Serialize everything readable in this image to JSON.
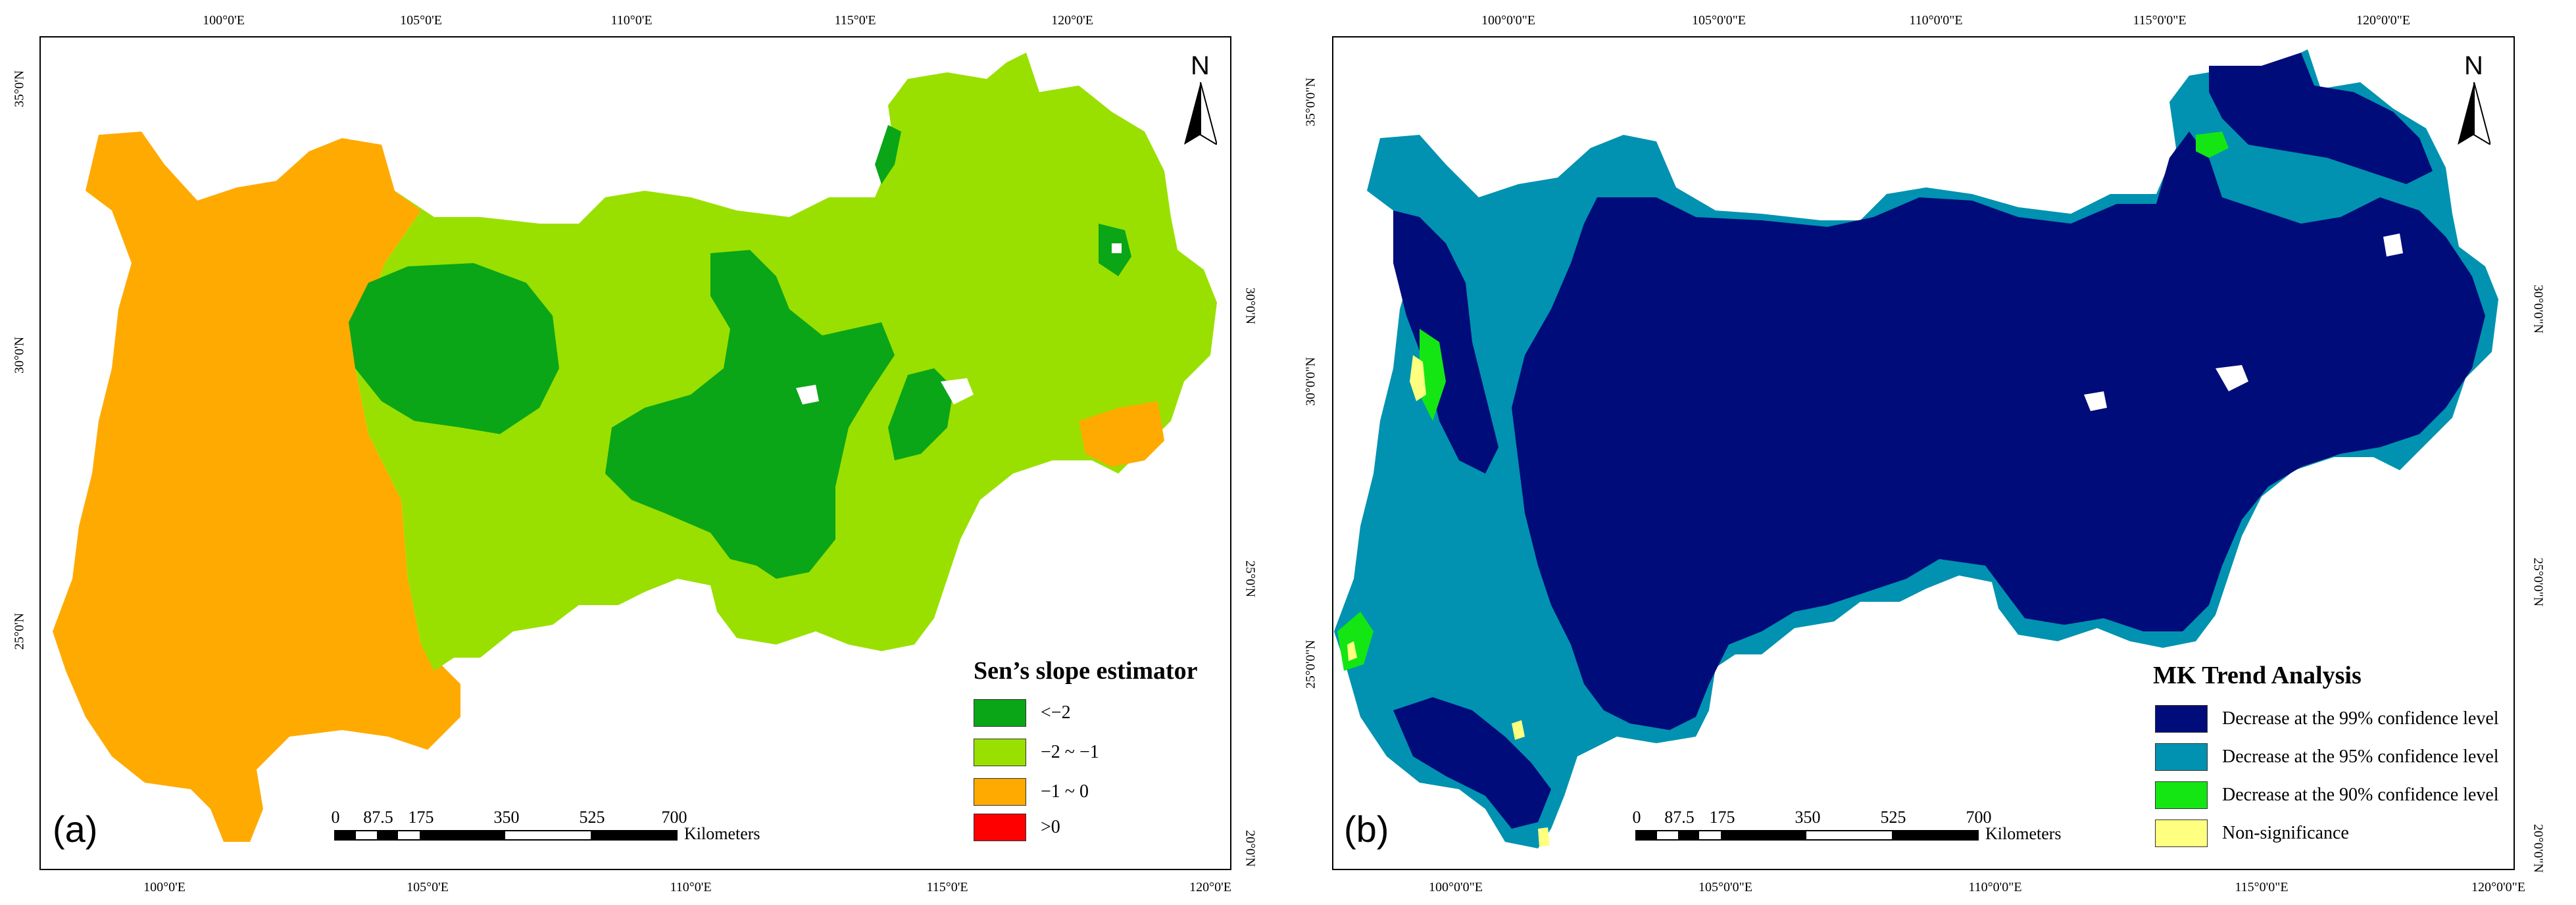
{
  "panels": {
    "a": {
      "label": "(a)",
      "lon_ticks": [
        "100°0'E",
        "105°0'E",
        "110°0'E",
        "115°0'E",
        "120°0'E"
      ],
      "lat_ticks": [
        "35°0'N",
        "30°0'N",
        "25°0'N",
        "20°0'N"
      ],
      "legend": {
        "title": "Sen’s slope estimator",
        "items": [
          {
            "label": "<−2",
            "color": "#0aa617"
          },
          {
            "label": "−2  ~ −1",
            "color": "#99e000"
          },
          {
            "label": "−1 ~ 0",
            "color": "#ffaa00"
          },
          {
            "label": ">0",
            "color": "#ff0000"
          }
        ]
      },
      "north": "N",
      "scale": {
        "ticks": [
          "0",
          "87.5",
          "175",
          "350",
          "525",
          "700"
        ],
        "unit": "Kilometers"
      }
    },
    "b": {
      "label": "(b)",
      "lon_ticks": [
        "100°0'0\"E",
        "105°0'0\"E",
        "110°0'0\"E",
        "115°0'0\"E",
        "120°0'0\"E"
      ],
      "lat_ticks": [
        "35°0'0\"N",
        "30°0'0\"N",
        "25°0'0\"N",
        "20°0'0\"N"
      ],
      "legend": {
        "title": "MK Trend Analysis",
        "items": [
          {
            "label": "Decrease at the 99% confidence level",
            "color": "#000c7a"
          },
          {
            "label": "Decrease at the 95% confidence level",
            "color": "#0092b0"
          },
          {
            "label": "Decrease at the 90% confidence level",
            "color": "#14e614"
          },
          {
            "label": "Non-significance",
            "color": "#ffff80"
          }
        ]
      },
      "north": "N",
      "scale": {
        "ticks": [
          "0",
          "87.5",
          "175",
          "350",
          "525",
          "700"
        ],
        "unit": "Kilometers"
      }
    }
  }
}
